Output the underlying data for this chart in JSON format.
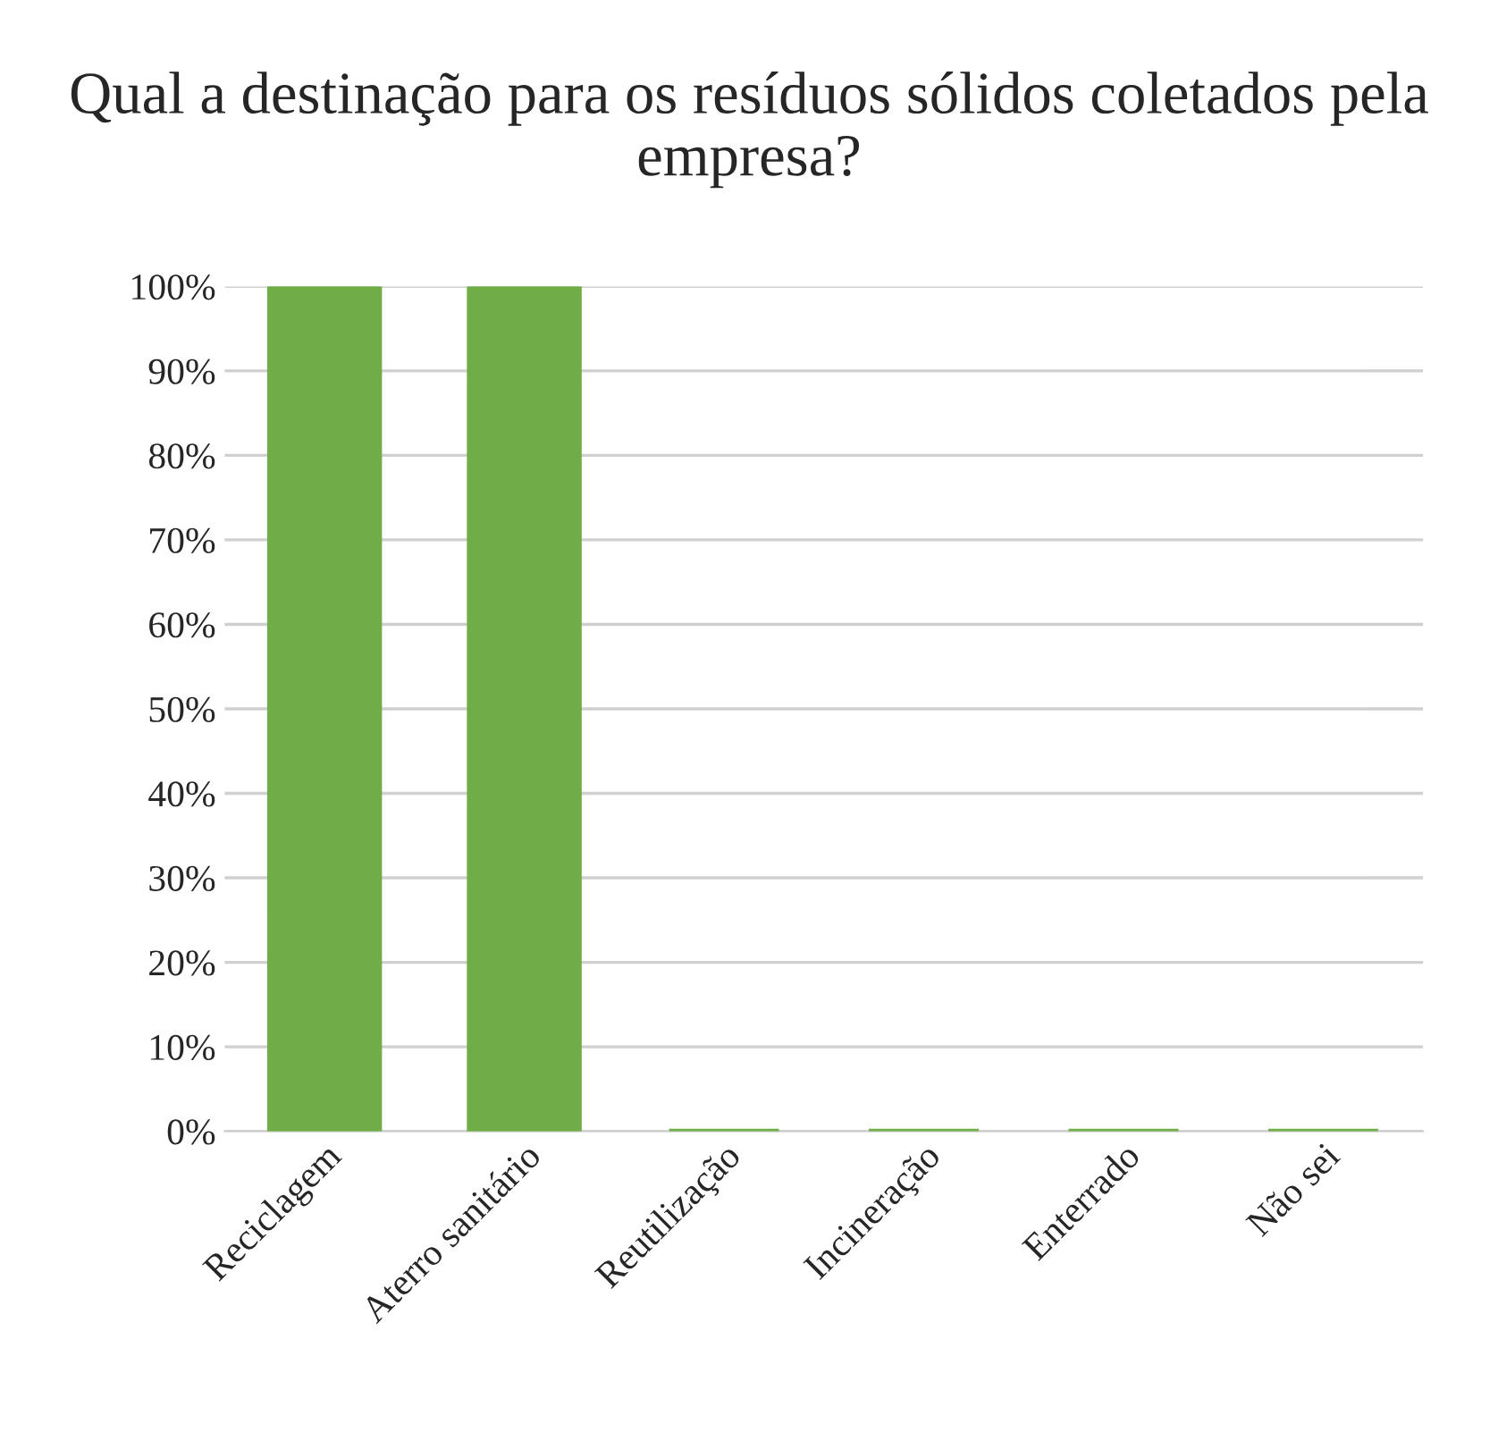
{
  "chart_data": {
    "type": "bar",
    "title": "Qual a destinação para os resíduos sólidos coletados pela empresa?",
    "categories": [
      "Reciclagem",
      "Aterro sanitário",
      "Reutilização",
      "Incineração",
      "Enterrado",
      "Não sei"
    ],
    "values": [
      100,
      100,
      0,
      0,
      0,
      0
    ],
    "color": "#70ad47",
    "ylim": [
      0,
      100
    ],
    "yticks": [
      {
        "value": 0,
        "label": "0%"
      },
      {
        "value": 10,
        "label": "10%"
      },
      {
        "value": 20,
        "label": "20%"
      },
      {
        "value": 30,
        "label": "30%"
      },
      {
        "value": 40,
        "label": "40%"
      },
      {
        "value": 50,
        "label": "50%"
      },
      {
        "value": 60,
        "label": "60%"
      },
      {
        "value": 70,
        "label": "70%"
      },
      {
        "value": 80,
        "label": "80%"
      },
      {
        "value": 90,
        "label": "90%"
      },
      {
        "value": 100,
        "label": "100%"
      }
    ],
    "grid": "y"
  }
}
